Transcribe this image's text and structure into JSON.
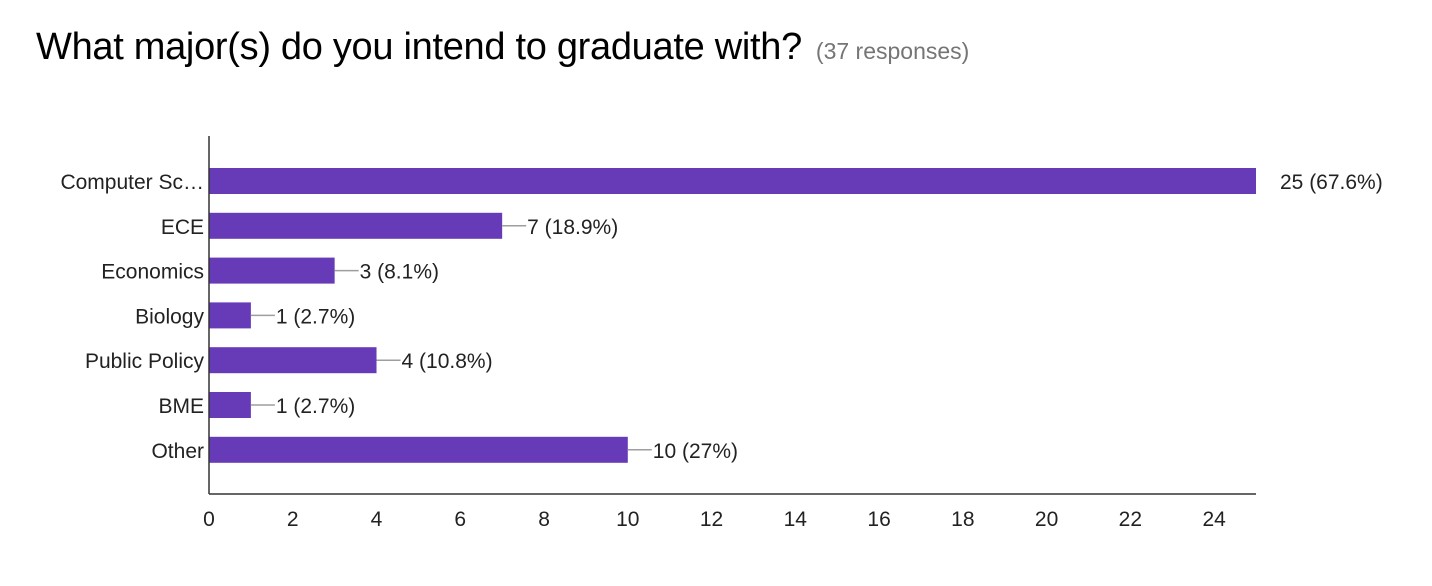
{
  "question": {
    "title": "What major(s) do you intend to graduate with?",
    "responses": "(37 responses)"
  },
  "colors": {
    "bar": "#673ab7",
    "axis": "#333333",
    "leader": "#9e9e9e",
    "text": "#222222",
    "subtle": "#757575"
  },
  "chart_data": {
    "type": "bar",
    "orientation": "horizontal",
    "categories": [
      "Computer Sc…",
      "ECE",
      "Economics",
      "Biology",
      "Public Policy",
      "BME",
      "Other"
    ],
    "values": [
      25,
      7,
      3,
      1,
      4,
      1,
      10
    ],
    "labels": [
      "25 (67.6%)",
      "7 (18.9%)",
      "3 (8.1%)",
      "1 (2.7%)",
      "4 (10.8%)",
      "1 (2.7%)",
      "10 (27%)"
    ],
    "xticks": [
      0,
      2,
      4,
      6,
      8,
      10,
      12,
      14,
      16,
      18,
      20,
      22,
      24
    ],
    "xlim": [
      0,
      25
    ],
    "grid": false,
    "legend": "none",
    "title": "What major(s) do you intend to graduate with?",
    "xlabel": "",
    "ylabel": ""
  }
}
